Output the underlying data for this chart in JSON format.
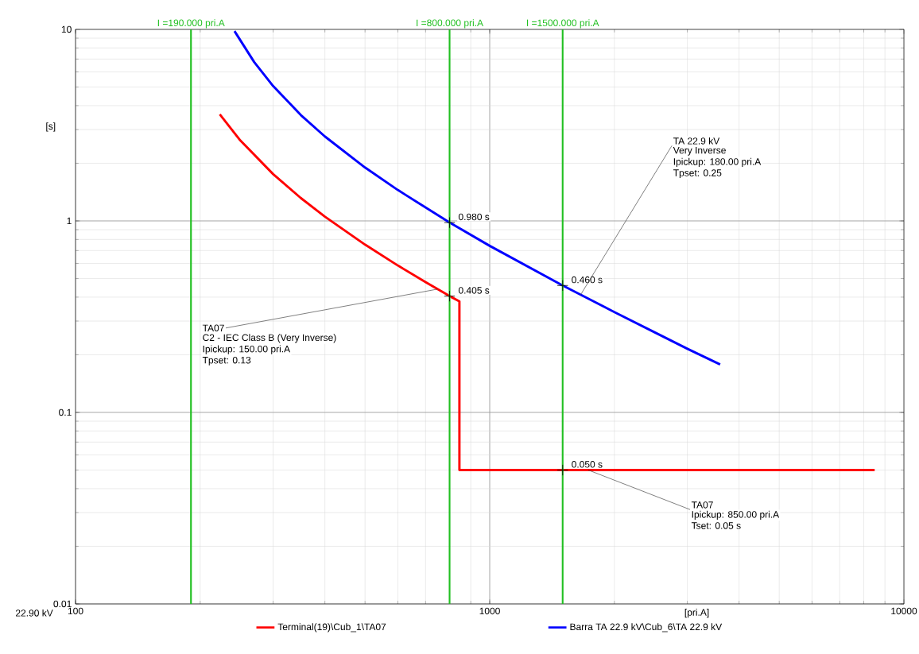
{
  "chart_data": {
    "type": "line",
    "xlabel": "[pri.A]",
    "ylabel": "[s]",
    "log": "xy",
    "grid": true,
    "legend": "bottom",
    "xlim": [
      100,
      10000
    ],
    "ylim": [
      0.01,
      10
    ],
    "xticks": [
      100,
      1000,
      10000
    ],
    "yticks": [
      0.01,
      0.1,
      1,
      10
    ],
    "series": [
      {
        "name": "Terminal(19)\\Cub_1\\TA07",
        "color": "#ff0000",
        "x": [
          223,
          250,
          300,
          350,
          400,
          500,
          600,
          700,
          800,
          845,
          845,
          8500
        ],
        "values": [
          3.6,
          2.63,
          1.755,
          1.316,
          1.053,
          0.752,
          0.585,
          0.479,
          0.405,
          0.38,
          0.05,
          0.05
        ]
      },
      {
        "name": "Barra TA 22.9 kV\\Cub_6\\TA 22.9 kV",
        "color": "#0000ff",
        "x": [
          242,
          270,
          300,
          350,
          400,
          500,
          600,
          800,
          1000,
          1500,
          2000,
          2500,
          3000,
          3600
        ],
        "values": [
          9.8,
          6.75,
          5.06,
          3.57,
          2.76,
          1.9,
          1.45,
          0.98,
          0.741,
          0.46,
          0.334,
          0.262,
          0.215,
          0.178
        ]
      }
    ],
    "ref_lines": [
      {
        "axis": "x",
        "value": 190,
        "label": "I =190.000 pri.A",
        "color": "#22c022"
      },
      {
        "axis": "x",
        "value": 800,
        "label": "I =800.000 pri.A",
        "color": "#22c022"
      },
      {
        "axis": "x",
        "value": 1500,
        "label": "I =1500.000 pri.A",
        "color": "#22c022"
      }
    ],
    "annotations": [
      "22.90 kV",
      {
        "text": "0.980 s",
        "x": 800,
        "y": 0.98
      },
      {
        "text": "0.405 s",
        "x": 800,
        "y": 0.405
      },
      {
        "text": "0.460 s",
        "x": 1500,
        "y": 0.46
      },
      {
        "text": "0.050 s",
        "x": 1500,
        "y": 0.05
      },
      {
        "text": "TA 22.9 kV",
        "x": 1656,
        "y": 0.41
      },
      "Very Inverse",
      "Ipickup: 180.00 pri.A",
      "Tpset: 0.25",
      {
        "text": "TA07",
        "x": 747,
        "y": 0.44
      },
      "C2 - IEC Class B (Very Inverse)",
      "Ipickup: 150.00 pri.A",
      "Tpset: 0.13",
      {
        "text": "TA07",
        "x": 1730,
        "y": 0.05
      },
      "Ipickup: 850.00 pri.A",
      "Tset: 0.05 s"
    ]
  }
}
